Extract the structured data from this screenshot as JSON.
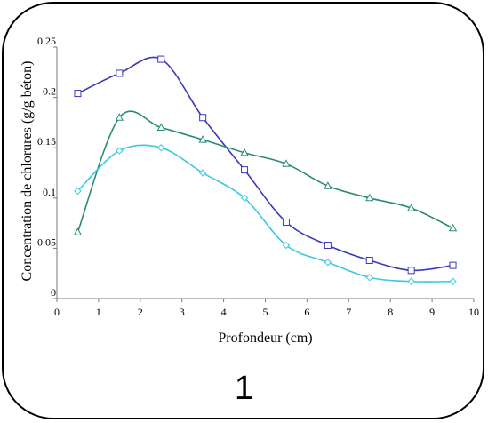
{
  "panel_label": "1",
  "chart_data": {
    "type": "line",
    "xlabel": "Profondeur (cm)",
    "ylabel": "Concentration de chlorures (g/g béton)",
    "xlim": [
      0,
      10
    ],
    "ylim": [
      0,
      0.25
    ],
    "x_ticks": [
      "0",
      "1",
      "2",
      "3",
      "4",
      "5",
      "6",
      "7",
      "8",
      "9",
      "10"
    ],
    "y_ticks": [
      "0",
      "0.05",
      "0.1",
      "0.15",
      "0.2",
      "0.25"
    ],
    "grid": false,
    "smooth": true,
    "series": [
      {
        "marker": "square",
        "color": "#3a3ab8",
        "x": [
          0.5,
          1.5,
          2.5,
          3.5,
          4.5,
          5.5,
          6.5,
          7.5,
          8.5,
          9.5
        ],
        "y": [
          0.204,
          0.224,
          0.238,
          0.18,
          0.128,
          0.076,
          0.053,
          0.038,
          0.028,
          0.033
        ]
      },
      {
        "marker": "triangle",
        "color": "#2a8a78",
        "x": [
          0.5,
          1.5,
          2.5,
          3.5,
          4.5,
          5.5,
          6.5,
          7.5,
          8.5,
          9.5
        ],
        "y": [
          0.066,
          0.18,
          0.17,
          0.158,
          0.145,
          0.134,
          0.112,
          0.1,
          0.09,
          0.07
        ]
      },
      {
        "marker": "diamond",
        "color": "#3cc8e0",
        "x": [
          0.5,
          1.5,
          2.5,
          3.5,
          4.5,
          5.5,
          6.5,
          7.5,
          8.5,
          9.5
        ],
        "y": [
          0.107,
          0.147,
          0.15,
          0.125,
          0.1,
          0.053,
          0.036,
          0.021,
          0.017,
          0.017
        ]
      }
    ]
  }
}
